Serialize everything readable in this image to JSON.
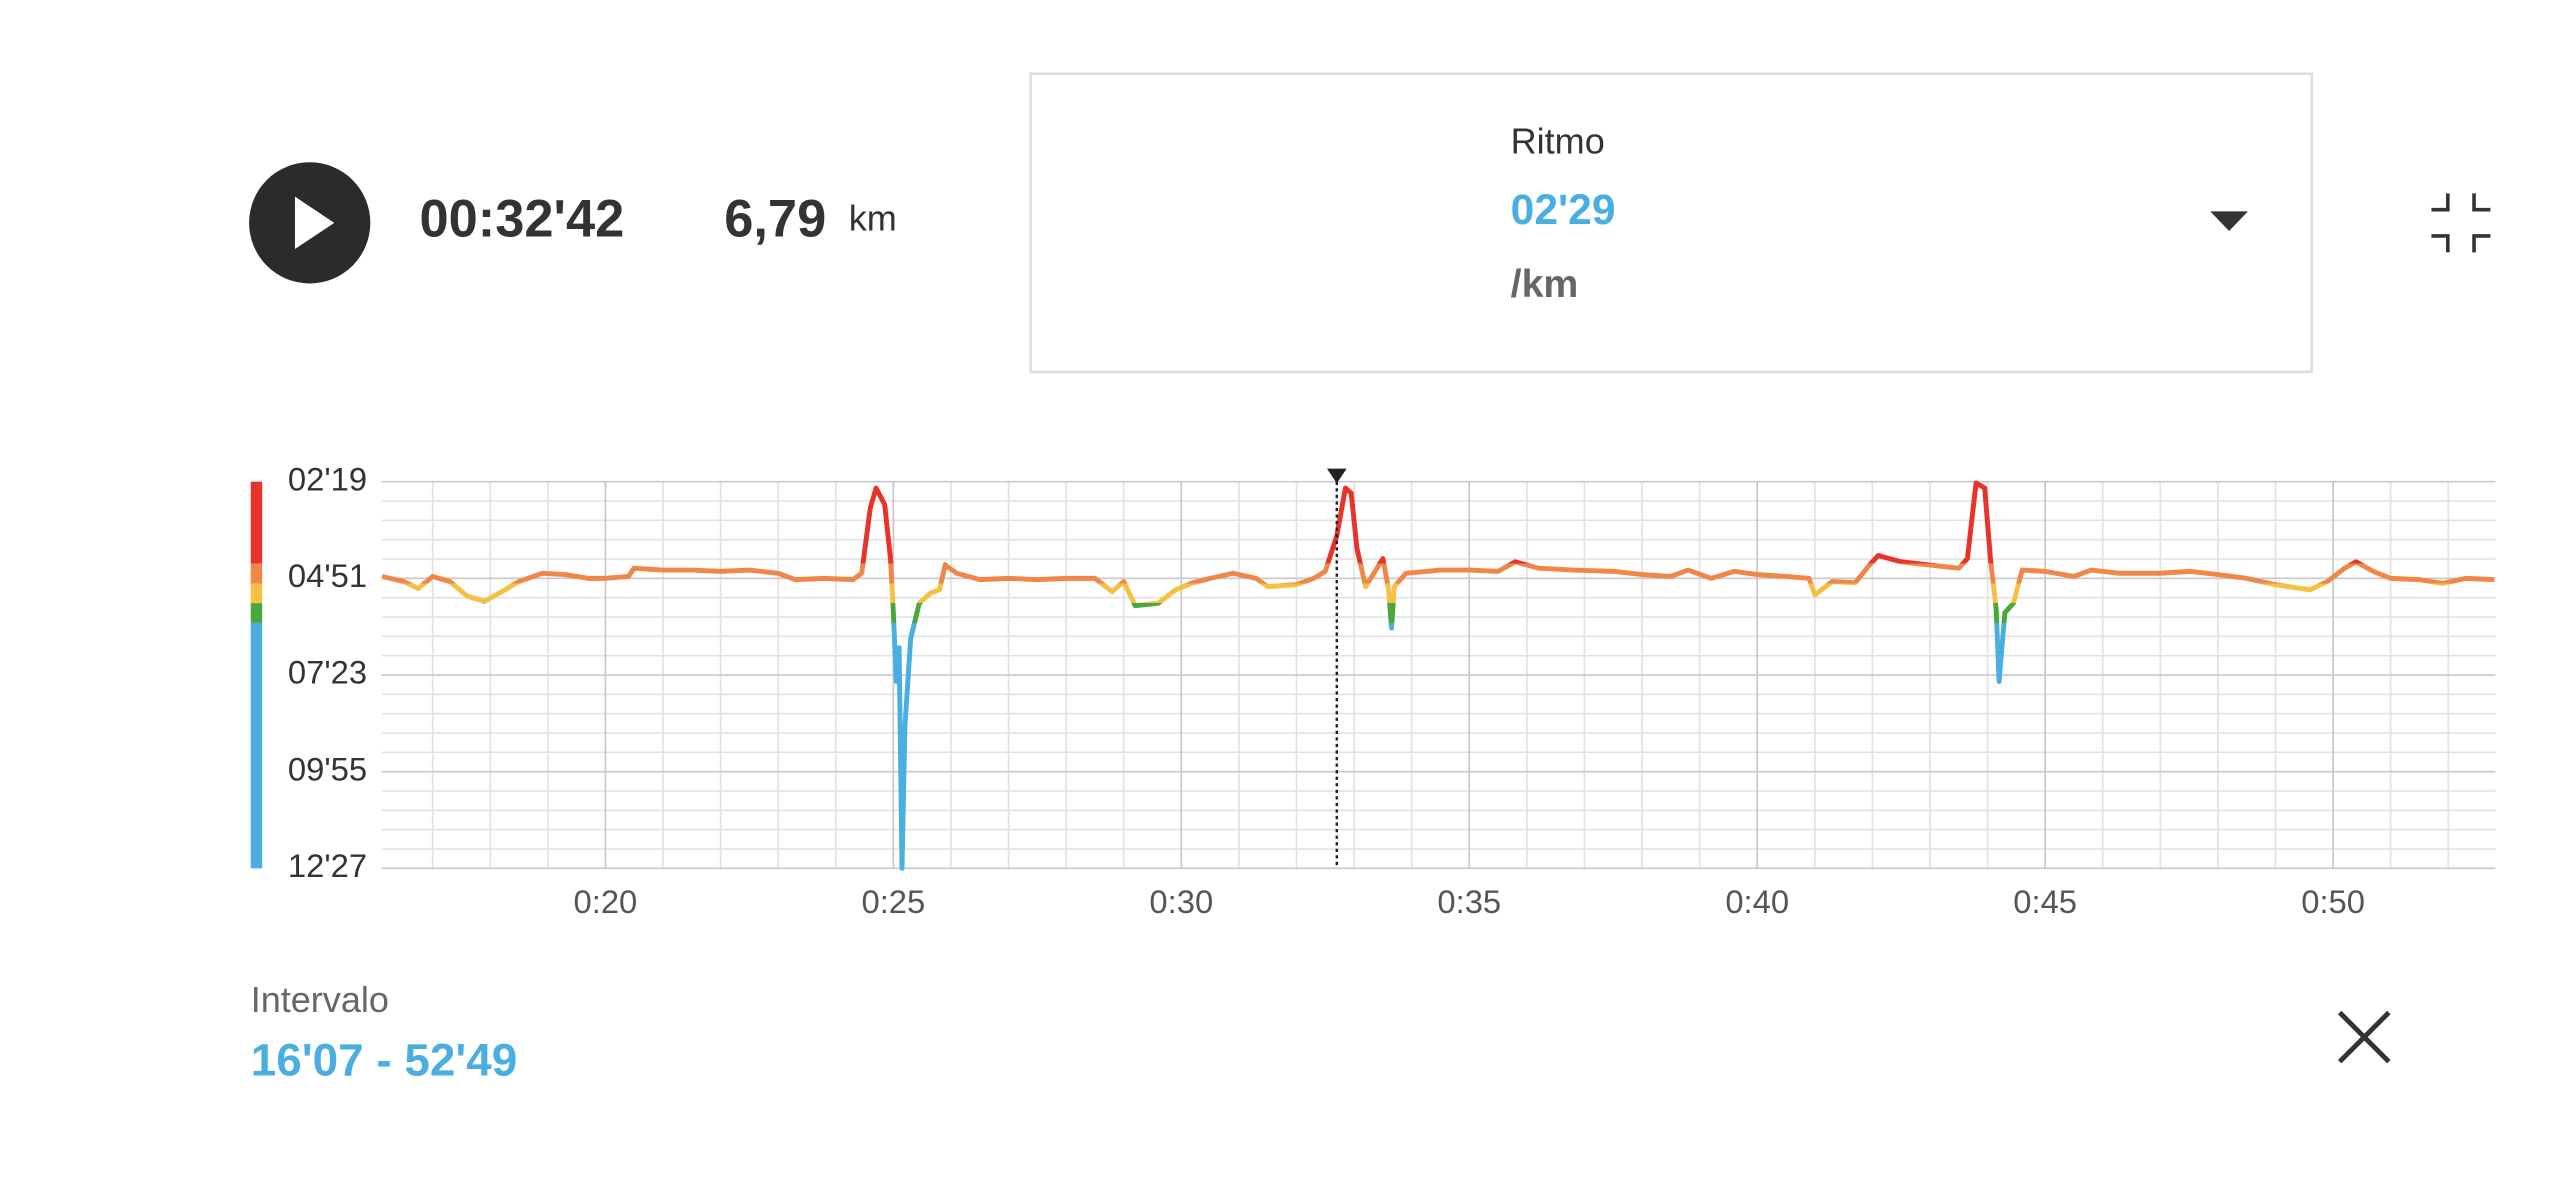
{
  "player": {
    "elapsed": "00:32'42",
    "distance": "6,79",
    "distance_unit": "km"
  },
  "metric": {
    "label": "Ritmo",
    "value": "02'29",
    "unit": "/km"
  },
  "interval": {
    "label": "Intervalo",
    "range": "16'07 - 52'49"
  },
  "chart_data": {
    "type": "line",
    "ylim": [
      747,
      139
    ],
    "yticks": [
      {
        "value": 139,
        "label": "02'19"
      },
      {
        "value": 291,
        "label": "04'51"
      },
      {
        "value": 443,
        "label": "07'23"
      },
      {
        "value": 595,
        "label": "09'55"
      },
      {
        "value": 747,
        "label": "12'27"
      }
    ],
    "xlim": [
      16.117,
      52.817
    ],
    "xticks": [
      {
        "value": 20,
        "label": "0:20"
      },
      {
        "value": 25,
        "label": "0:25"
      },
      {
        "value": 30,
        "label": "0:30"
      },
      {
        "value": 35,
        "label": "0:35"
      },
      {
        "value": 40,
        "label": "0:40"
      },
      {
        "value": 45,
        "label": "0:45"
      },
      {
        "value": 50,
        "label": "0:50"
      }
    ],
    "grid": true,
    "zones": [
      {
        "color": "#e8332a",
        "min": 139,
        "max": 268
      },
      {
        "color": "#ef874b",
        "min": 268,
        "max": 299
      },
      {
        "color": "#f5c142",
        "min": 299,
        "max": 330
      },
      {
        "color": "#4aa83a",
        "min": 330,
        "max": 361
      },
      {
        "color": "#4aaee0",
        "min": 361,
        "max": 747
      }
    ],
    "cursor": 32.7,
    "x": [
      16.12,
      16.5,
      16.75,
      17.0,
      17.3,
      17.6,
      17.9,
      18.2,
      18.5,
      18.9,
      19.3,
      19.7,
      20.0,
      20.4,
      20.5,
      21.0,
      21.5,
      22.0,
      22.5,
      23.0,
      23.3,
      23.8,
      24.3,
      24.45,
      24.6,
      24.7,
      24.85,
      24.95,
      25.0,
      25.05,
      25.1,
      25.15,
      25.2,
      25.3,
      25.45,
      25.65,
      25.8,
      25.9,
      26.1,
      26.5,
      27.0,
      27.5,
      28.0,
      28.5,
      28.8,
      29.0,
      29.2,
      29.6,
      29.9,
      30.2,
      30.5,
      30.9,
      31.3,
      31.5,
      32.0,
      32.3,
      32.5,
      32.7,
      32.85,
      32.95,
      33.05,
      33.2,
      33.5,
      33.6,
      33.65,
      33.7,
      33.9,
      34.5,
      35.0,
      35.5,
      35.8,
      36.2,
      36.8,
      37.5,
      38.0,
      38.5,
      38.8,
      39.2,
      39.6,
      40.0,
      40.5,
      40.9,
      41.0,
      41.3,
      41.7,
      41.95,
      42.1,
      42.5,
      43.0,
      43.5,
      43.65,
      43.8,
      43.95,
      44.05,
      44.15,
      44.2,
      44.3,
      44.45,
      44.6,
      45.0,
      45.5,
      45.8,
      46.3,
      47.0,
      47.5,
      48.0,
      48.5,
      49.0,
      49.6,
      49.9,
      50.2,
      50.4,
      50.7,
      51.0,
      51.5,
      51.9,
      52.3,
      52.8
    ],
    "values": [
      288,
      296,
      307,
      288,
      296,
      319,
      327,
      312,
      296,
      283,
      285,
      291,
      291,
      288,
      275,
      278,
      278,
      280,
      278,
      283,
      293,
      291,
      293,
      283,
      180,
      149,
      175,
      260,
      345,
      453,
      400,
      747,
      525,
      386,
      330,
      314,
      309,
      270,
      283,
      293,
      291,
      293,
      291,
      291,
      312,
      296,
      334,
      330,
      309,
      298,
      291,
      283,
      291,
      304,
      301,
      291,
      280,
      224,
      149,
      157,
      244,
      304,
      260,
      309,
      369,
      304,
      283,
      278,
      278,
      280,
      265,
      275,
      278,
      280,
      285,
      288,
      278,
      291,
      280,
      285,
      288,
      291,
      317,
      296,
      298,
      270,
      255,
      265,
      270,
      275,
      260,
      141,
      149,
      260,
      340,
      453,
      345,
      330,
      278,
      280,
      288,
      278,
      283,
      283,
      280,
      285,
      291,
      301,
      309,
      296,
      275,
      265,
      280,
      291,
      293,
      299,
      291,
      293
    ]
  }
}
